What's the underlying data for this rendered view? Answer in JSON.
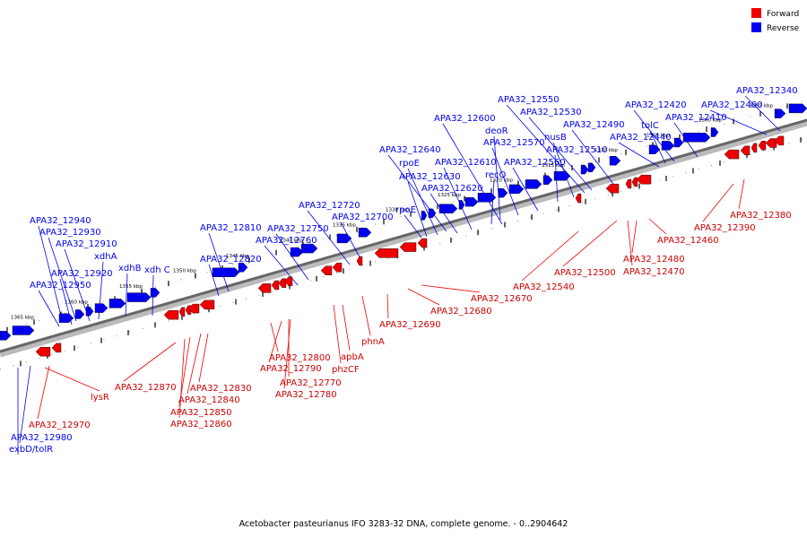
{
  "legend": {
    "forward_label": "Forward",
    "reverse_label": "Reverse",
    "forward_color": "#ee0000",
    "reverse_color": "#0000ee"
  },
  "caption": "Acetobacter pasteurianus IFO 3283-32 DNA, complete genome. - 0..2904642",
  "tick_labels": [
    "1365 kbp",
    "1360 kbp",
    "1355 kbp",
    "1350 kbp",
    "1345 kbp",
    "1340 kbp",
    "1335 kbp",
    "1330 kbp",
    "1325 kbp",
    "1320 kbp",
    "1315 kbp",
    "1310 kbp",
    "1305 kbp",
    "1300 kbp",
    "1295 kbp"
  ],
  "reverse_labels": [
    "APA32_12340",
    "APA32_12400",
    "APA32_12420",
    "APA32_12410",
    "tolC",
    "APA32_12440",
    "APA32_12550",
    "APA32_12530",
    "nusB",
    "APA32_12490",
    "APA32_12510",
    "APA32_12600",
    "deoR",
    "APA32_12570",
    "recQ",
    "APA32_12560",
    "APA32_12640",
    "rpoE",
    "APA32_12610",
    "APA32_12630",
    "APA32_12620",
    "rpoE",
    "APA32_12720",
    "APA32_12700",
    "APA32_12810",
    "APA32_12750",
    "APA32_12760",
    "APA32_12820",
    "APA32_12940",
    "APA32_12930",
    "APA32_12910",
    "xdhA",
    "xdhB",
    "xdh C",
    "APA32_12920",
    "APA32_12950",
    "APA32_12980",
    "exbD/tolR"
  ],
  "forward_labels": [
    "APA32_12380",
    "APA32_12390",
    "APA32_12460",
    "APA32_12480",
    "APA32_12470",
    "APA32_12500",
    "APA32_12540",
    "APA32_12670",
    "APA32_12680",
    "APA32_12690",
    "phnA",
    "apbA",
    "phzCF",
    "APA32_12800",
    "APA32_12790",
    "APA32_12770",
    "APA32_12780",
    "APA32_12870",
    "APA32_12830",
    "APA32_12840",
    "APA32_12850",
    "APA32_12860",
    "lysR",
    "APA32_12970"
  ]
}
